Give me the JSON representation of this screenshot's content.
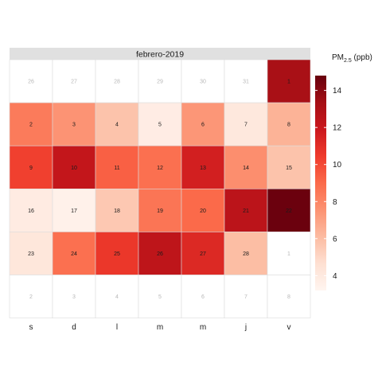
{
  "chart_data": {
    "type": "heatmap",
    "title": "febrero-2019",
    "legend": {
      "title_main": "PM",
      "title_sub": "2.5",
      "title_unit": " (ppb)",
      "ticks": [
        4,
        6,
        8,
        10,
        12,
        14
      ],
      "range": [
        3.2,
        14.8
      ],
      "colors": [
        "#fff5f0",
        "#fee0d2",
        "#fcbba1",
        "#fc9272",
        "#fb6a4a",
        "#ef3b2c",
        "#cb181d",
        "#a50f15",
        "#67000d"
      ]
    },
    "weekdays": [
      "s",
      "d",
      "l",
      "m",
      "m",
      "j",
      "v"
    ],
    "weeks": [
      [
        {
          "d": 26,
          "in": false,
          "v": null
        },
        {
          "d": 27,
          "in": false,
          "v": null
        },
        {
          "d": 28,
          "in": false,
          "v": null
        },
        {
          "d": 29,
          "in": false,
          "v": null
        },
        {
          "d": 30,
          "in": false,
          "v": null
        },
        {
          "d": 31,
          "in": false,
          "v": null
        },
        {
          "d": 1,
          "in": true,
          "v": 13.2
        }
      ],
      [
        {
          "d": 2,
          "in": true,
          "v": 8.4
        },
        {
          "d": 3,
          "in": true,
          "v": 7.5
        },
        {
          "d": 4,
          "in": true,
          "v": 5.8
        },
        {
          "d": 5,
          "in": true,
          "v": 3.8
        },
        {
          "d": 6,
          "in": true,
          "v": 7.4
        },
        {
          "d": 7,
          "in": true,
          "v": 4.1
        },
        {
          "d": 8,
          "in": true,
          "v": 6.4
        }
      ],
      [
        {
          "d": 9,
          "in": true,
          "v": 10.3
        },
        {
          "d": 10,
          "in": true,
          "v": 12.2
        },
        {
          "d": 11,
          "in": true,
          "v": 9.3
        },
        {
          "d": 12,
          "in": true,
          "v": 8.8
        },
        {
          "d": 13,
          "in": true,
          "v": 11.6
        },
        {
          "d": 14,
          "in": true,
          "v": 7.7
        },
        {
          "d": 15,
          "in": true,
          "v": 5.8
        }
      ],
      [
        {
          "d": 16,
          "in": true,
          "v": 3.9
        },
        {
          "d": 17,
          "in": true,
          "v": 3.5
        },
        {
          "d": 18,
          "in": true,
          "v": 5.6
        },
        {
          "d": 19,
          "in": true,
          "v": 8.6
        },
        {
          "d": 20,
          "in": true,
          "v": 9.0
        },
        {
          "d": 21,
          "in": true,
          "v": 12.5
        },
        {
          "d": 22,
          "in": true,
          "v": 14.7
        }
      ],
      [
        {
          "d": 23,
          "in": true,
          "v": 4.2
        },
        {
          "d": 24,
          "in": true,
          "v": 8.8
        },
        {
          "d": 25,
          "in": true,
          "v": 10.6
        },
        {
          "d": 26,
          "in": true,
          "v": 12.4
        },
        {
          "d": 27,
          "in": true,
          "v": 11.2
        },
        {
          "d": 28,
          "in": true,
          "v": 6.0
        },
        {
          "d": 1,
          "in": false,
          "v": null
        }
      ],
      [
        {
          "d": 2,
          "in": false,
          "v": null
        },
        {
          "d": 3,
          "in": false,
          "v": null
        },
        {
          "d": 4,
          "in": false,
          "v": null
        },
        {
          "d": 5,
          "in": false,
          "v": null
        },
        {
          "d": 6,
          "in": false,
          "v": null
        },
        {
          "d": 7,
          "in": false,
          "v": null
        },
        {
          "d": 8,
          "in": false,
          "v": null
        }
      ]
    ]
  }
}
